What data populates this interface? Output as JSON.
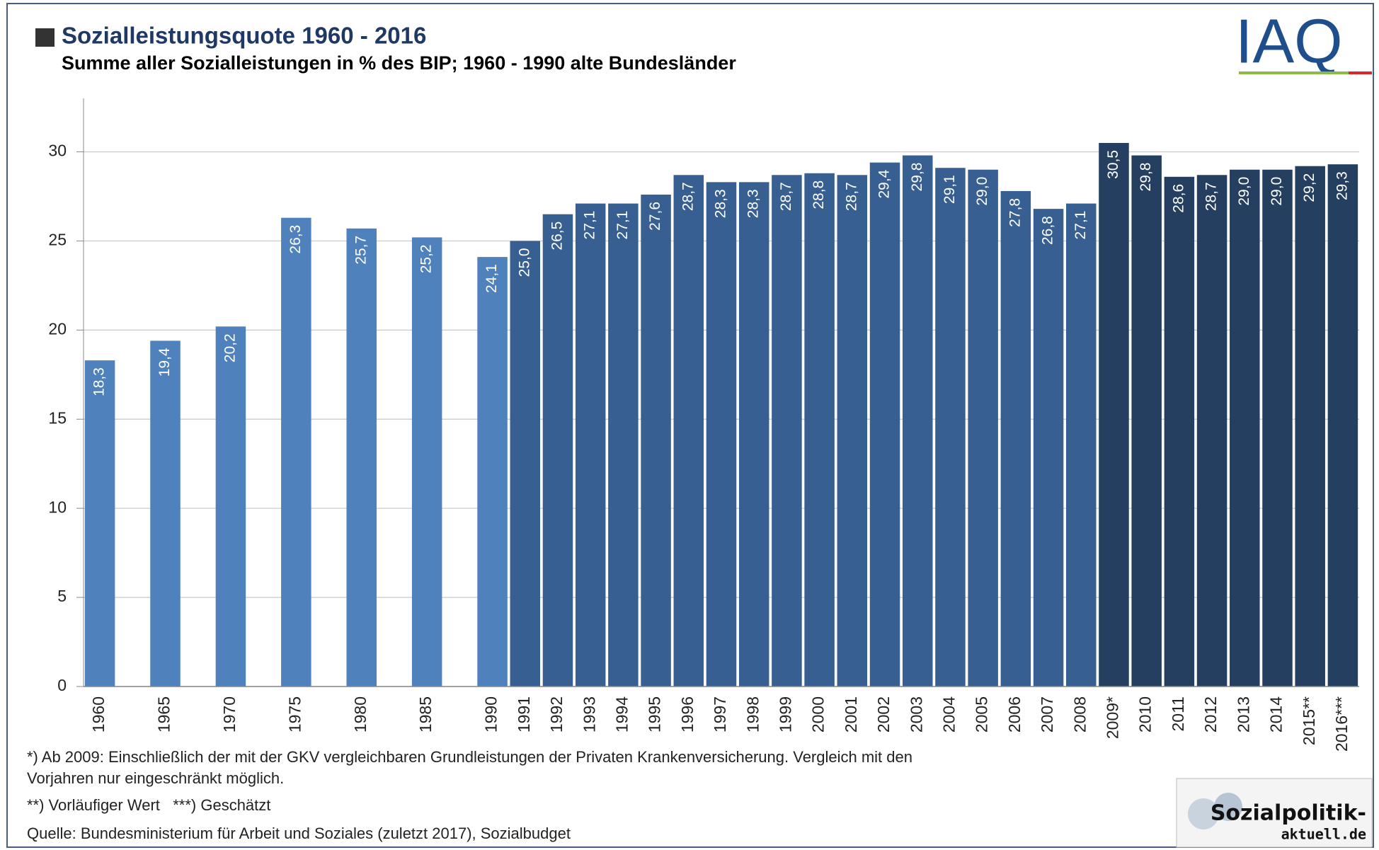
{
  "chart_data": {
    "type": "bar",
    "title": "Sozialleistungsquote 1960 - 2016",
    "subtitle": "Summe aller Sozialleistungen in % des BIP; 1960 - 1990 alte Bundesländer",
    "categories": [
      "1960",
      "1965",
      "1970",
      "1975",
      "1980",
      "1985",
      "1990",
      "1991",
      "1992",
      "1993",
      "1994",
      "1995",
      "1996",
      "1997",
      "1998",
      "1999",
      "2000",
      "2001",
      "2002",
      "2003",
      "2004",
      "2005",
      "2006",
      "2007",
      "2008",
      "2009*",
      "2010",
      "2011",
      "2012",
      "2013",
      "2014",
      "2015**",
      "2016***"
    ],
    "values": [
      18.3,
      19.4,
      20.2,
      26.3,
      25.7,
      25.2,
      24.1,
      25.0,
      26.5,
      27.1,
      27.1,
      27.6,
      28.7,
      28.3,
      28.3,
      28.7,
      28.8,
      28.7,
      29.4,
      29.8,
      29.1,
      29.0,
      27.8,
      26.8,
      27.1,
      30.5,
      29.8,
      28.6,
      28.7,
      29.0,
      29.0,
      29.2,
      29.3
    ],
    "value_labels": [
      "18,3",
      "19,4",
      "20,2",
      "26,3",
      "25,7",
      "25,2",
      "24,1",
      "25,0",
      "26,5",
      "27,1",
      "27,1",
      "27,6",
      "28,7",
      "28,3",
      "28,3",
      "28,7",
      "28,8",
      "28,7",
      "29,4",
      "29,8",
      "29,1",
      "29,0",
      "27,8",
      "26,8",
      "27,1",
      "30,5",
      "29,8",
      "28,6",
      "28,7",
      "29,0",
      "29,0",
      "29,2",
      "29,3"
    ],
    "colors": [
      "#4f81bd",
      "#4f81bd",
      "#4f81bd",
      "#4f81bd",
      "#4f81bd",
      "#4f81bd",
      "#4f81bd",
      "#375f91",
      "#375f91",
      "#375f91",
      "#375f91",
      "#375f91",
      "#375f91",
      "#375f91",
      "#375f91",
      "#375f91",
      "#375f91",
      "#375f91",
      "#375f91",
      "#375f91",
      "#375f91",
      "#375f91",
      "#375f91",
      "#375f91",
      "#375f91",
      "#243f60",
      "#243f60",
      "#243f60",
      "#243f60",
      "#243f60",
      "#243f60",
      "#243f60",
      "#243f60"
    ],
    "ylim": [
      0,
      33
    ],
    "yticks": [
      0,
      5,
      10,
      15,
      20,
      25,
      30
    ],
    "grid": true,
    "notes": [
      "*) Ab 2009: Einschließlich der mit der GKV vergleichbaren Grundleistungen der Privaten Krankenversicherung. Vergleich mit den",
      "Vorjahren nur eingeschränkt möglich.",
      "**) Vorläufiger Wert   ***) Geschätzt",
      "Quelle: Bundesministerium für Arbeit und Soziales (zuletzt 2017), Sozialbudget"
    ],
    "logo": "IAQ",
    "badge": [
      "Sozialpolitik-",
      "aktuell.de"
    ]
  }
}
